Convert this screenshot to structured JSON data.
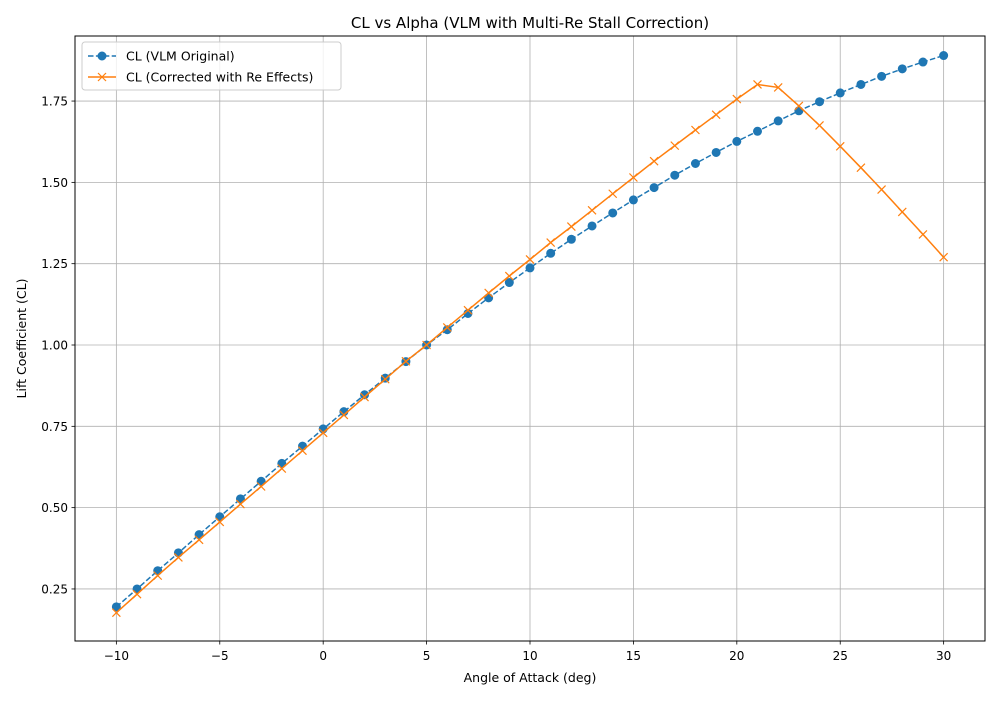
{
  "chart_data": {
    "type": "line",
    "title": "CL vs Alpha (VLM with Multi-Re Stall Correction)",
    "xlabel": "Angle of Attack (deg)",
    "ylabel": "Lift Coefficient (CL)",
    "xlim": [
      -12,
      32
    ],
    "ylim": [
      0.09,
      1.95
    ],
    "x_ticks": [
      -10,
      -5,
      0,
      5,
      10,
      15,
      20,
      25,
      30
    ],
    "x_tick_labels": [
      "−10",
      "−5",
      "0",
      "5",
      "10",
      "15",
      "20",
      "25",
      "30"
    ],
    "y_ticks": [
      0.25,
      0.5,
      0.75,
      1.0,
      1.25,
      1.5,
      1.75
    ],
    "y_tick_labels": [
      "0.25",
      "0.50",
      "0.75",
      "1.00",
      "1.25",
      "1.50",
      "1.75"
    ],
    "grid": true,
    "legend_position": "top-left",
    "x": [
      -10,
      -9,
      -8,
      -7,
      -6,
      -5,
      -4,
      -3,
      -2,
      -1,
      0,
      1,
      2,
      3,
      4,
      5,
      6,
      7,
      8,
      9,
      10,
      11,
      12,
      13,
      14,
      15,
      16,
      17,
      18,
      19,
      20,
      21,
      22,
      23,
      24,
      25,
      26,
      27,
      28,
      29,
      30
    ],
    "series": [
      {
        "name": "CL (VLM Original)",
        "color": "#1f77b4",
        "line_style": "dashed",
        "marker": "circle",
        "values": [
          0.195,
          0.25,
          0.306,
          0.361,
          0.417,
          0.472,
          0.527,
          0.581,
          0.636,
          0.689,
          0.742,
          0.795,
          0.847,
          0.898,
          0.949,
          1.0,
          1.047,
          1.097,
          1.145,
          1.192,
          1.237,
          1.282,
          1.325,
          1.366,
          1.406,
          1.446,
          1.484,
          1.522,
          1.558,
          1.592,
          1.626,
          1.657,
          1.689,
          1.72,
          1.748,
          1.775,
          1.801,
          1.826,
          1.849,
          1.87,
          1.89
        ]
      },
      {
        "name": "CL (Corrected with Re Effects)",
        "color": "#ff7f0e",
        "line_style": "solid",
        "marker": "x",
        "values": [
          0.177,
          0.234,
          0.291,
          0.347,
          0.401,
          0.456,
          0.511,
          0.565,
          0.62,
          0.675,
          0.73,
          0.785,
          0.84,
          0.895,
          0.95,
          1.0,
          1.054,
          1.107,
          1.16,
          1.212,
          1.263,
          1.315,
          1.364,
          1.414,
          1.465,
          1.515,
          1.565,
          1.613,
          1.661,
          1.708,
          1.756,
          1.801,
          1.792,
          1.735,
          1.675,
          1.611,
          1.545,
          1.478,
          1.409,
          1.34,
          1.27
        ]
      }
    ]
  }
}
